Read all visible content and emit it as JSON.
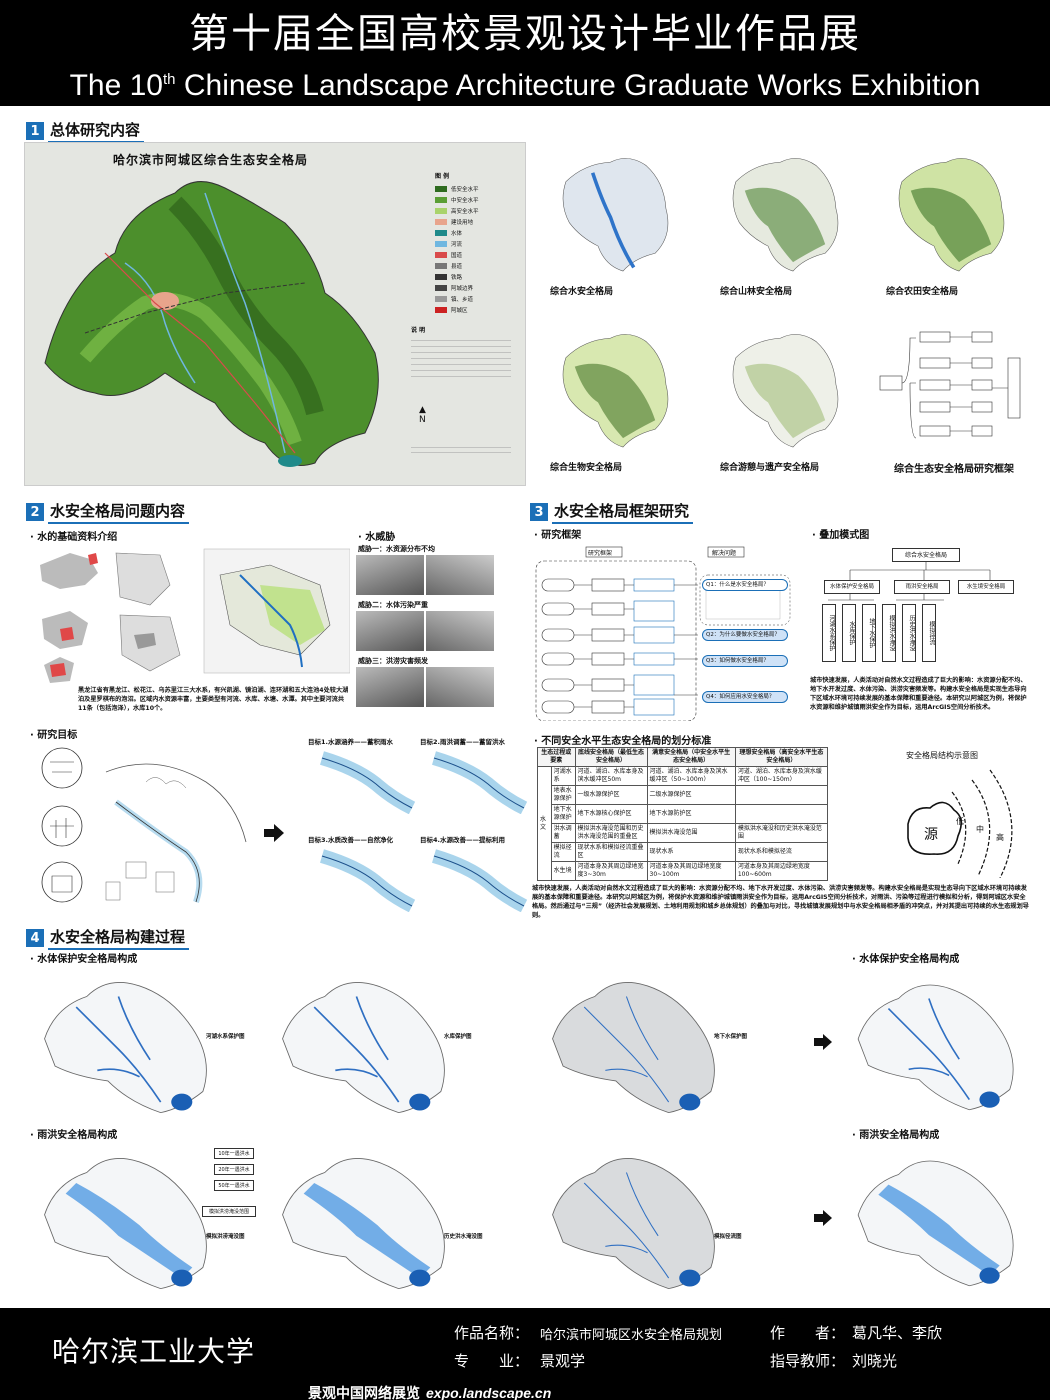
{
  "header": {
    "title_cn": "第十届全国高校景观设计毕业作品展",
    "title_en_pre": "The 10",
    "title_en_sup": "th",
    "title_en_post": " Chinese Landscape Architecture Graduate Works Exhibition"
  },
  "s1": {
    "num": "1",
    "title": "总体研究内容",
    "main_map_title": "哈尔滨市阿城区综合生态安全格局",
    "legend_title": "图 例",
    "legend": [
      {
        "label": "低安全水平",
        "color": "#2e6b1f"
      },
      {
        "label": "中安全水平",
        "color": "#5a9e34"
      },
      {
        "label": "高安全水平",
        "color": "#a9d36b"
      },
      {
        "label": "建设用地",
        "color": "#e8a48c"
      },
      {
        "label": "水体",
        "color": "#1f8a8a"
      },
      {
        "label": "河流",
        "color": "#6fb7e0"
      },
      {
        "label": "国道",
        "color": "#d94b4b"
      },
      {
        "label": "县道",
        "color": "#777777"
      },
      {
        "label": "铁路",
        "color": "#333333"
      },
      {
        "label": "阿城边界",
        "color": "#444444"
      },
      {
        "label": "镇、乡道",
        "color": "#999999"
      },
      {
        "label": "阿城区",
        "color": "#cc2222"
      }
    ],
    "note_title": "说 明",
    "maps": [
      {
        "caption": "综合水安全格局",
        "type": "water"
      },
      {
        "caption": "综合山林安全格局",
        "type": "forest"
      },
      {
        "caption": "综合农田安全格局",
        "type": "farm"
      },
      {
        "caption": "综合生物安全格局",
        "type": "bio"
      },
      {
        "caption": "综合游憩与遗产安全格局",
        "type": "heritage"
      }
    ],
    "framework_caption": "综合生态安全格局研究框架"
  },
  "s2": {
    "num": "2",
    "title": "水安全格局问题内容",
    "basic_title": "· 水的基础资料介绍",
    "basic_text": "黑龙江省有黑龙江、松花江、乌苏里江三大水系，有兴凯湖、镜泊湖、连环湖和五大连池4处较大湖泊及星罗棋布的泡沼。区域内水资源丰富，主要类型有河流、水库、水塘、水潭。其中主要河流共11条（包括泡泽），水库10个。",
    "threat_title": "· 水威胁",
    "threats": [
      "威胁一：水资源分布不均",
      "威胁二：水体污染严重",
      "威胁三：洪涝灾害频发"
    ],
    "goal_title": "· 研究目标",
    "goals": [
      "目标1.水源涵养——蓄积雨水",
      "目标2.雨洪调蓄——蓄留洪水",
      "目标3.水质改善——自然净化",
      "目标4.水源改善——提标利用"
    ]
  },
  "s3": {
    "num": "3",
    "title": "水安全格局框架研究",
    "framework_title": "· 研究框架",
    "flow_left": [
      "研究框架"
    ],
    "flow_right": [
      "解决问题"
    ],
    "questions": [
      "Q1：什么是水安全格局？",
      "Q2：为什么要做水安全格局？",
      "Q3：如何做水安全格局？",
      "Q4：如何应用水安全格局？"
    ],
    "overlay_title": "· 叠加模式图",
    "overlay_root": "综合水安全格局",
    "overlay_mid": [
      "水体保护安全格局",
      "雨洪安全格局",
      "水生境安全格局"
    ],
    "overlay_leaf": [
      "河湖水系保护",
      "水库保护",
      "地下水保护",
      "模拟洪水淹没",
      "历史洪水淹没",
      "模拟径流"
    ],
    "overlay_text": "城市快速发展，人类活动对自然水文过程造成了巨大的影响：水资源分配不均、地下水开发过度、水体污染、洪涝灾害频发等。构建水安全格局是实现生态导向下区域水环境可持续发展的基本保障和重要途径。本研究以阿城区为例，将保护水资源和维护城镇雨洪安全作为目标，运用ArcGIS空间分析技术。",
    "std_title": "· 不同安全水平生态安全格局的划分标准",
    "table_headers": [
      "生态过程或要素",
      "",
      "底线安全格局（最低生态安全格局）",
      "满意安全格局（中安全水平生态安全格局）",
      "理想安全格局（高安全水平生态安全格局）"
    ],
    "table_rows": [
      [
        "水文",
        "河湖水系",
        "河道、湖泊、水库本身及滨水缓冲区50m",
        "河道、湖泊、水库本身及滨水缓冲区（50~100m）",
        "河道、湖泊、水库本身及滨水缓冲区（100~150m）"
      ],
      [
        "",
        "地表水源保护",
        "一级水源保护区",
        "二级水源保护区",
        ""
      ],
      [
        "",
        "地下水源保护",
        "地下水源核心保护区",
        "地下水源防护区",
        ""
      ],
      [
        "",
        "洪水调蓄",
        "模拟洪水淹没范围和历史洪水淹没范围的重叠区",
        "模拟洪水淹没范围",
        "模拟洪水淹没和历史洪水淹没范围"
      ],
      [
        "",
        "模拟径流",
        "现状水系和模拟径流重叠区",
        "现状水系",
        "现状水系和模拟径流"
      ],
      [
        "",
        "水生境",
        "河道本身及其周边绿地宽度3~30m",
        "河道本身及其周边绿地宽度30~100m",
        "河道本身及其周边绿地宽度100~600m"
      ]
    ],
    "diagram_title": "安全格局结构示意图",
    "diagram_labels": [
      "源",
      "低",
      "中",
      "高"
    ],
    "bottom_text": "城市快速发展，人类活动对自然水文过程造成了巨大的影响：水资源分配不均、地下水开发过度、水体污染、洪涝灾害频发等。构建水安全格局是实现生态导向下区域水环境可持续发展的基本保障和重要途径。本研究以阿城区为例，将保护水资源和维护城镇雨洪安全作为目标，运用ArcGIS空间分析技术，对雨洪、污染等过程进行模拟和分析，得到阿城区水安全格局。然后通过与“三规”（经济社会发展规划、土地利用规划和城乡总体规划）的叠加与对比，寻找城镇发展规划中与水安全格局相矛盾的冲突点，并对其提出可持续的水生态规划导则。"
  },
  "s4": {
    "num": "4",
    "title": "水安全格局构建过程",
    "row1_title": "· 水体保护安全格局构成",
    "row1_captions": [
      "河湖水系保护图",
      "水库保护图",
      "地下水保护图"
    ],
    "row1_result": "· 水体保护安全格局构成",
    "row2_title": "· 雨洪安全格局构成",
    "row2_captions": [
      "模拟洪涝淹没图",
      "历史洪水淹没图",
      "模拟径流图"
    ],
    "row2_result": "· 雨洪安全格局构成",
    "row2_flow": [
      "10年一遇洪水",
      "20年一遇洪水",
      "50年一遇洪水",
      "模拟洪涝淹没范围"
    ]
  },
  "footer": {
    "university": "哈尔滨工业大学",
    "work_label": "作品名称：",
    "work_name": "哈尔滨市阿城区水安全格局规划",
    "author_label": "作　　者：",
    "authors": "葛凡华、李欣",
    "major_label": "专　　业：",
    "major": "景观学",
    "advisor_label": "指导教师：",
    "advisor": "刘晓光",
    "site_cn": "景观中国网络展览",
    "site_url": "expo.landscape.cn"
  }
}
